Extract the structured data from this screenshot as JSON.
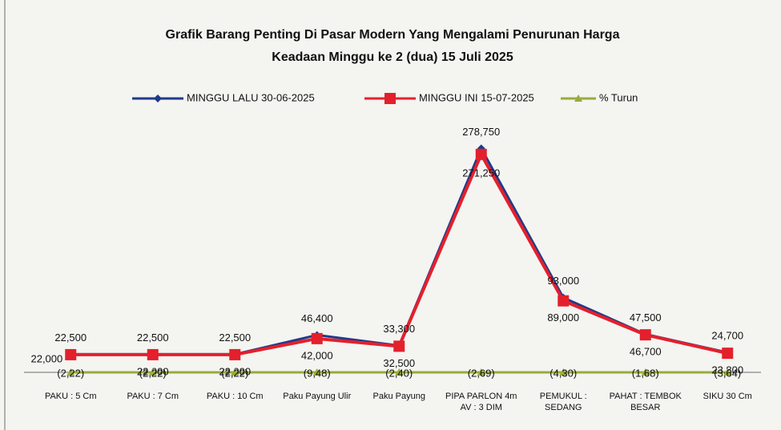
{
  "chart_data": {
    "type": "line",
    "title": "Grafik Barang Penting Di Pasar Modern  Yang Mengalami Penurunan Harga",
    "subtitle": "Keadaan Minggu ke 2 (dua) 15 Juli 2025",
    "categories": [
      "PAKU : 5 Cm",
      "PAKU : 7 Cm",
      "PAKU : 10 Cm",
      "Paku Payung Ulir",
      "Paku Payung",
      "PIPA PARLON 4m AV : 3 DIM",
      "PEMUKUL : SEDANG",
      "PAHAT : TEMBOK BESAR",
      "SIKU 30 Cm"
    ],
    "ylim": [
      0,
      300000
    ],
    "legend": "top",
    "series": [
      {
        "name": "MINGGU LALU 30-06-2025",
        "color": "#1f3a8a",
        "values": [
          22500,
          22500,
          22500,
          46400,
          33300,
          278750,
          93000,
          47500,
          24700
        ],
        "value_labels": [
          "22,500",
          "22,500",
          "22,500",
          "46,400",
          "33,300",
          "278,750",
          "93,000",
          "47,500",
          "24,700"
        ]
      },
      {
        "name": "MINGGU INI 15-07-2025",
        "color": "#e3202c",
        "values": [
          22000,
          22000,
          22000,
          42000,
          32500,
          271250,
          89000,
          46700,
          23800
        ],
        "value_labels": [
          "22,000",
          "22,000",
          "22,000",
          "42,000",
          "32,500",
          "271,250",
          "89,000",
          "46,700",
          "23,800"
        ]
      },
      {
        "name": "% Turun",
        "color": "#9aab3a",
        "values": [
          -2.22,
          -2.22,
          -2.22,
          -9.48,
          -2.4,
          -2.69,
          -4.3,
          -1.68,
          -3.64
        ],
        "value_labels": [
          "(2,22)",
          "(2,22)",
          "(2,22)",
          "(9,48)",
          "(2,40)",
          "(2,69)",
          "(4,30)",
          "(1,68)",
          "(3,64)"
        ]
      }
    ]
  }
}
